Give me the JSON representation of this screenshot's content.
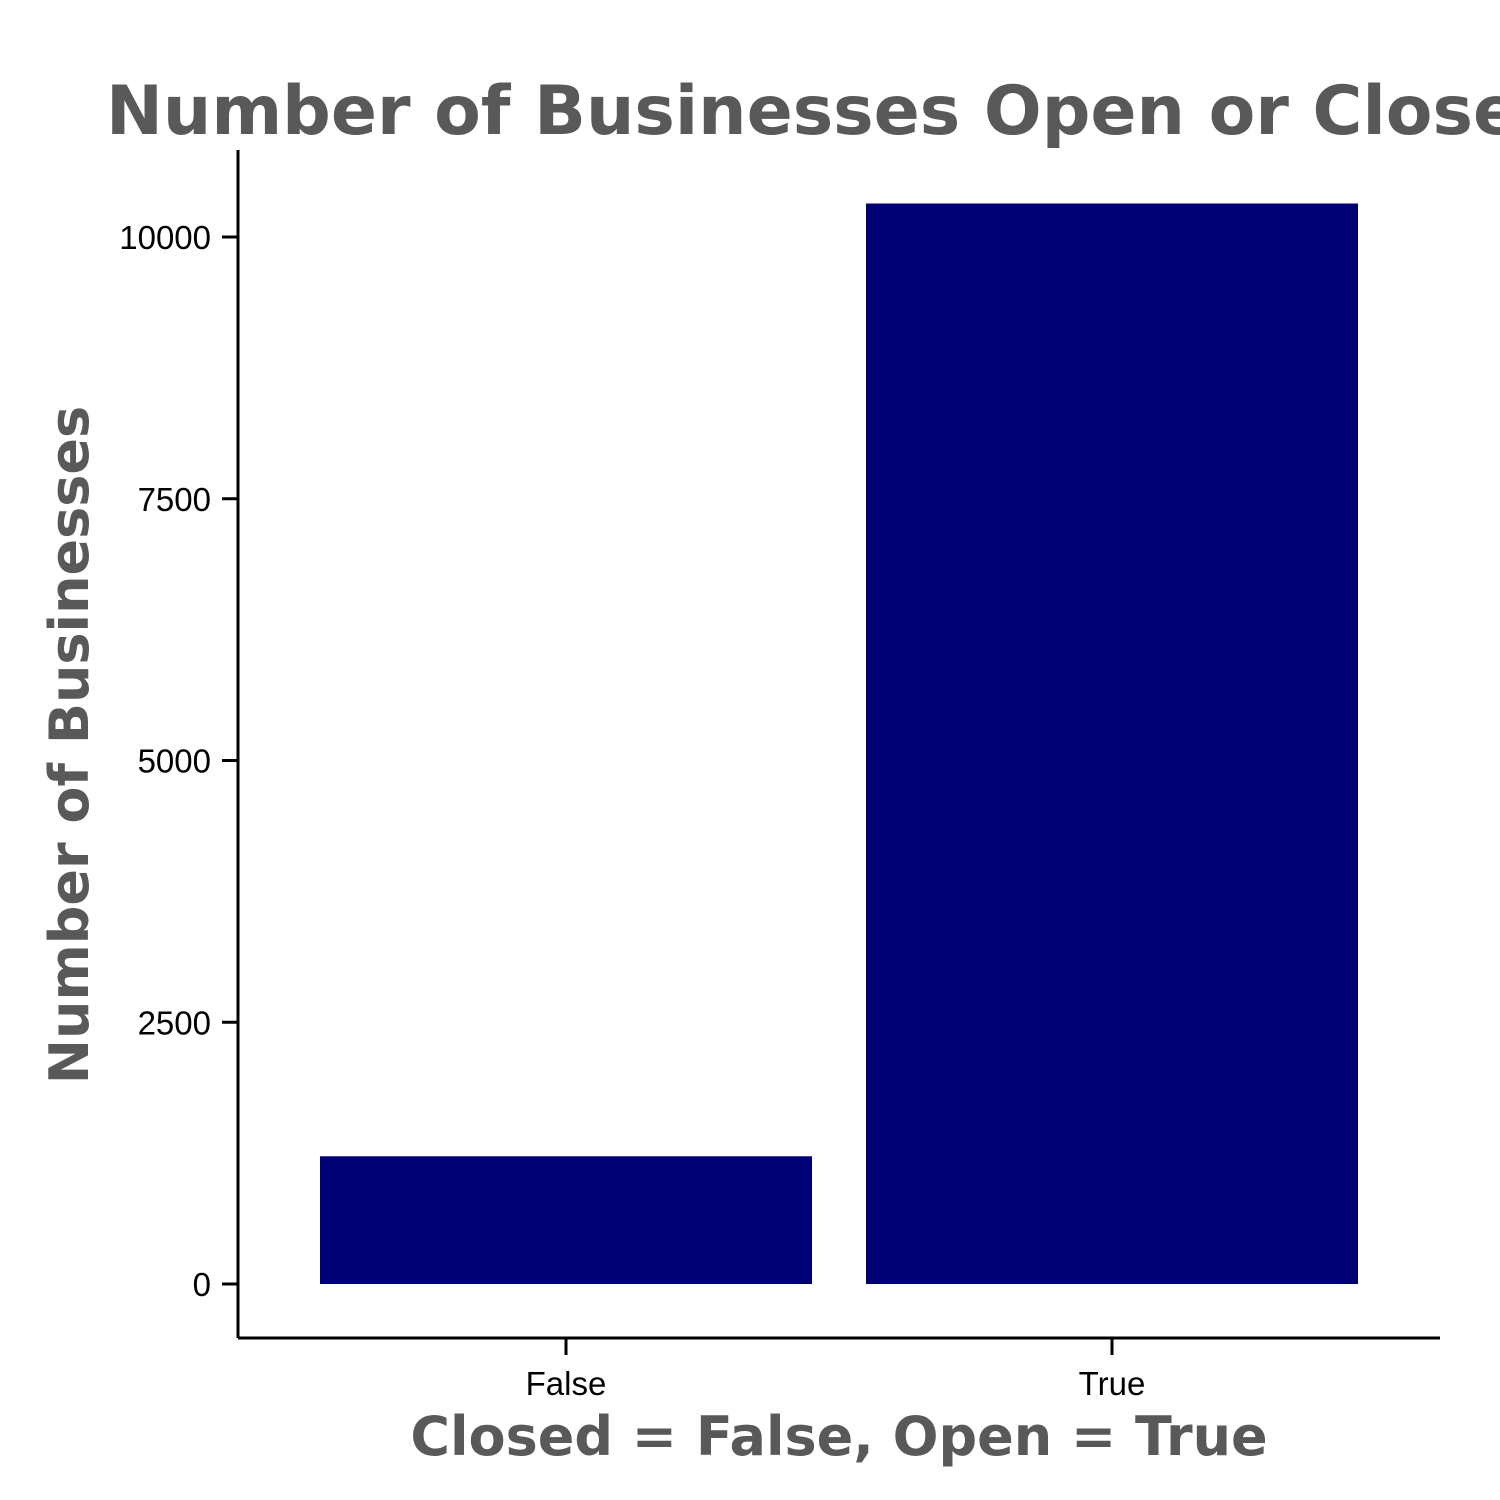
{
  "chart_data": {
    "type": "bar",
    "title": "Number of Businesses Open or Closed",
    "xlabel": "Closed = False, Open = True",
    "ylabel": "Number of Businesses",
    "categories": [
      "False",
      "True"
    ],
    "values": [
      1220,
      10320
    ],
    "ylim": [
      -500,
      10800
    ],
    "yticks": [
      0,
      2500,
      5000,
      7500,
      10000
    ],
    "ytick_labels": [
      "0",
      "2500",
      "5000",
      "7500",
      "10000"
    ],
    "grid": false,
    "legend": "none",
    "bar_color": "#000075"
  }
}
